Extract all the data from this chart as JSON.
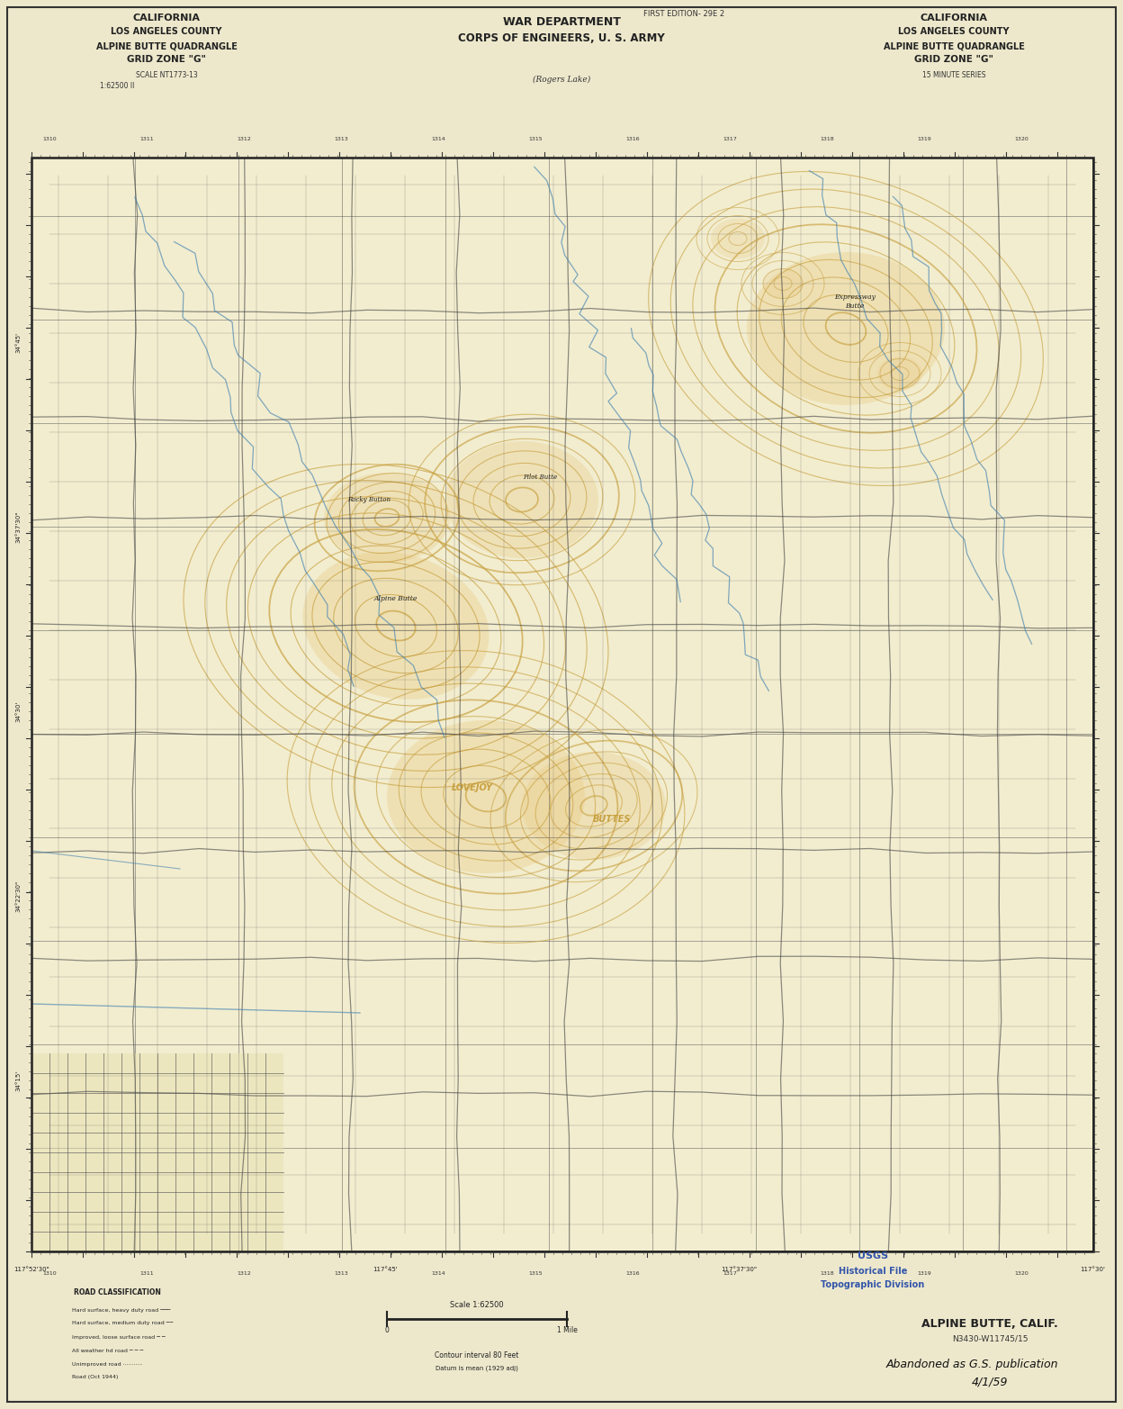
{
  "bg_color": "#f5f0dc",
  "map_bg": "#f2edcf",
  "border_color": "#2a2a2a",
  "title_left_lines": [
    "CALIFORNIA",
    "LOS ANGELES COUNTY",
    "ALPINE BUTTE QUADRANGLE",
    "GRID ZONE \"G\""
  ],
  "title_left_sub": "SCALE NT1773-13",
  "title_left_sub2": "1:62500 II",
  "title_center_lines": [
    "WAR DEPARTMENT",
    "CORPS OF ENGINEERS, U. S. ARMY"
  ],
  "title_center_sub": "(Rogers Lake)",
  "title_edition": "FIRST EDITION- 29E 2",
  "title_right_lines": [
    "CALIFORNIA",
    "LOS ANGELES COUNTY",
    "ALPINE BUTTE QUADRANGLE",
    "GRID ZONE \"G\""
  ],
  "title_right_sub": "15 MINUTE SERIES",
  "bottom_right_name": "ALPINE BUTTE, CALIF.",
  "bottom_right_code": "N3430-W11745/15",
  "usgs_stamp_lines": [
    "USGS",
    "Historical File",
    "Topographic Division"
  ],
  "handwritten_line1": "Abandoned as G.S. publication",
  "handwritten_line2": "4/1/59",
  "contour_color": "#c8a040",
  "water_color": "#4080b0",
  "road_color": "#333333",
  "grid_color": "#444444",
  "town_color": "#222222",
  "outer_bg": "#ede8cc"
}
